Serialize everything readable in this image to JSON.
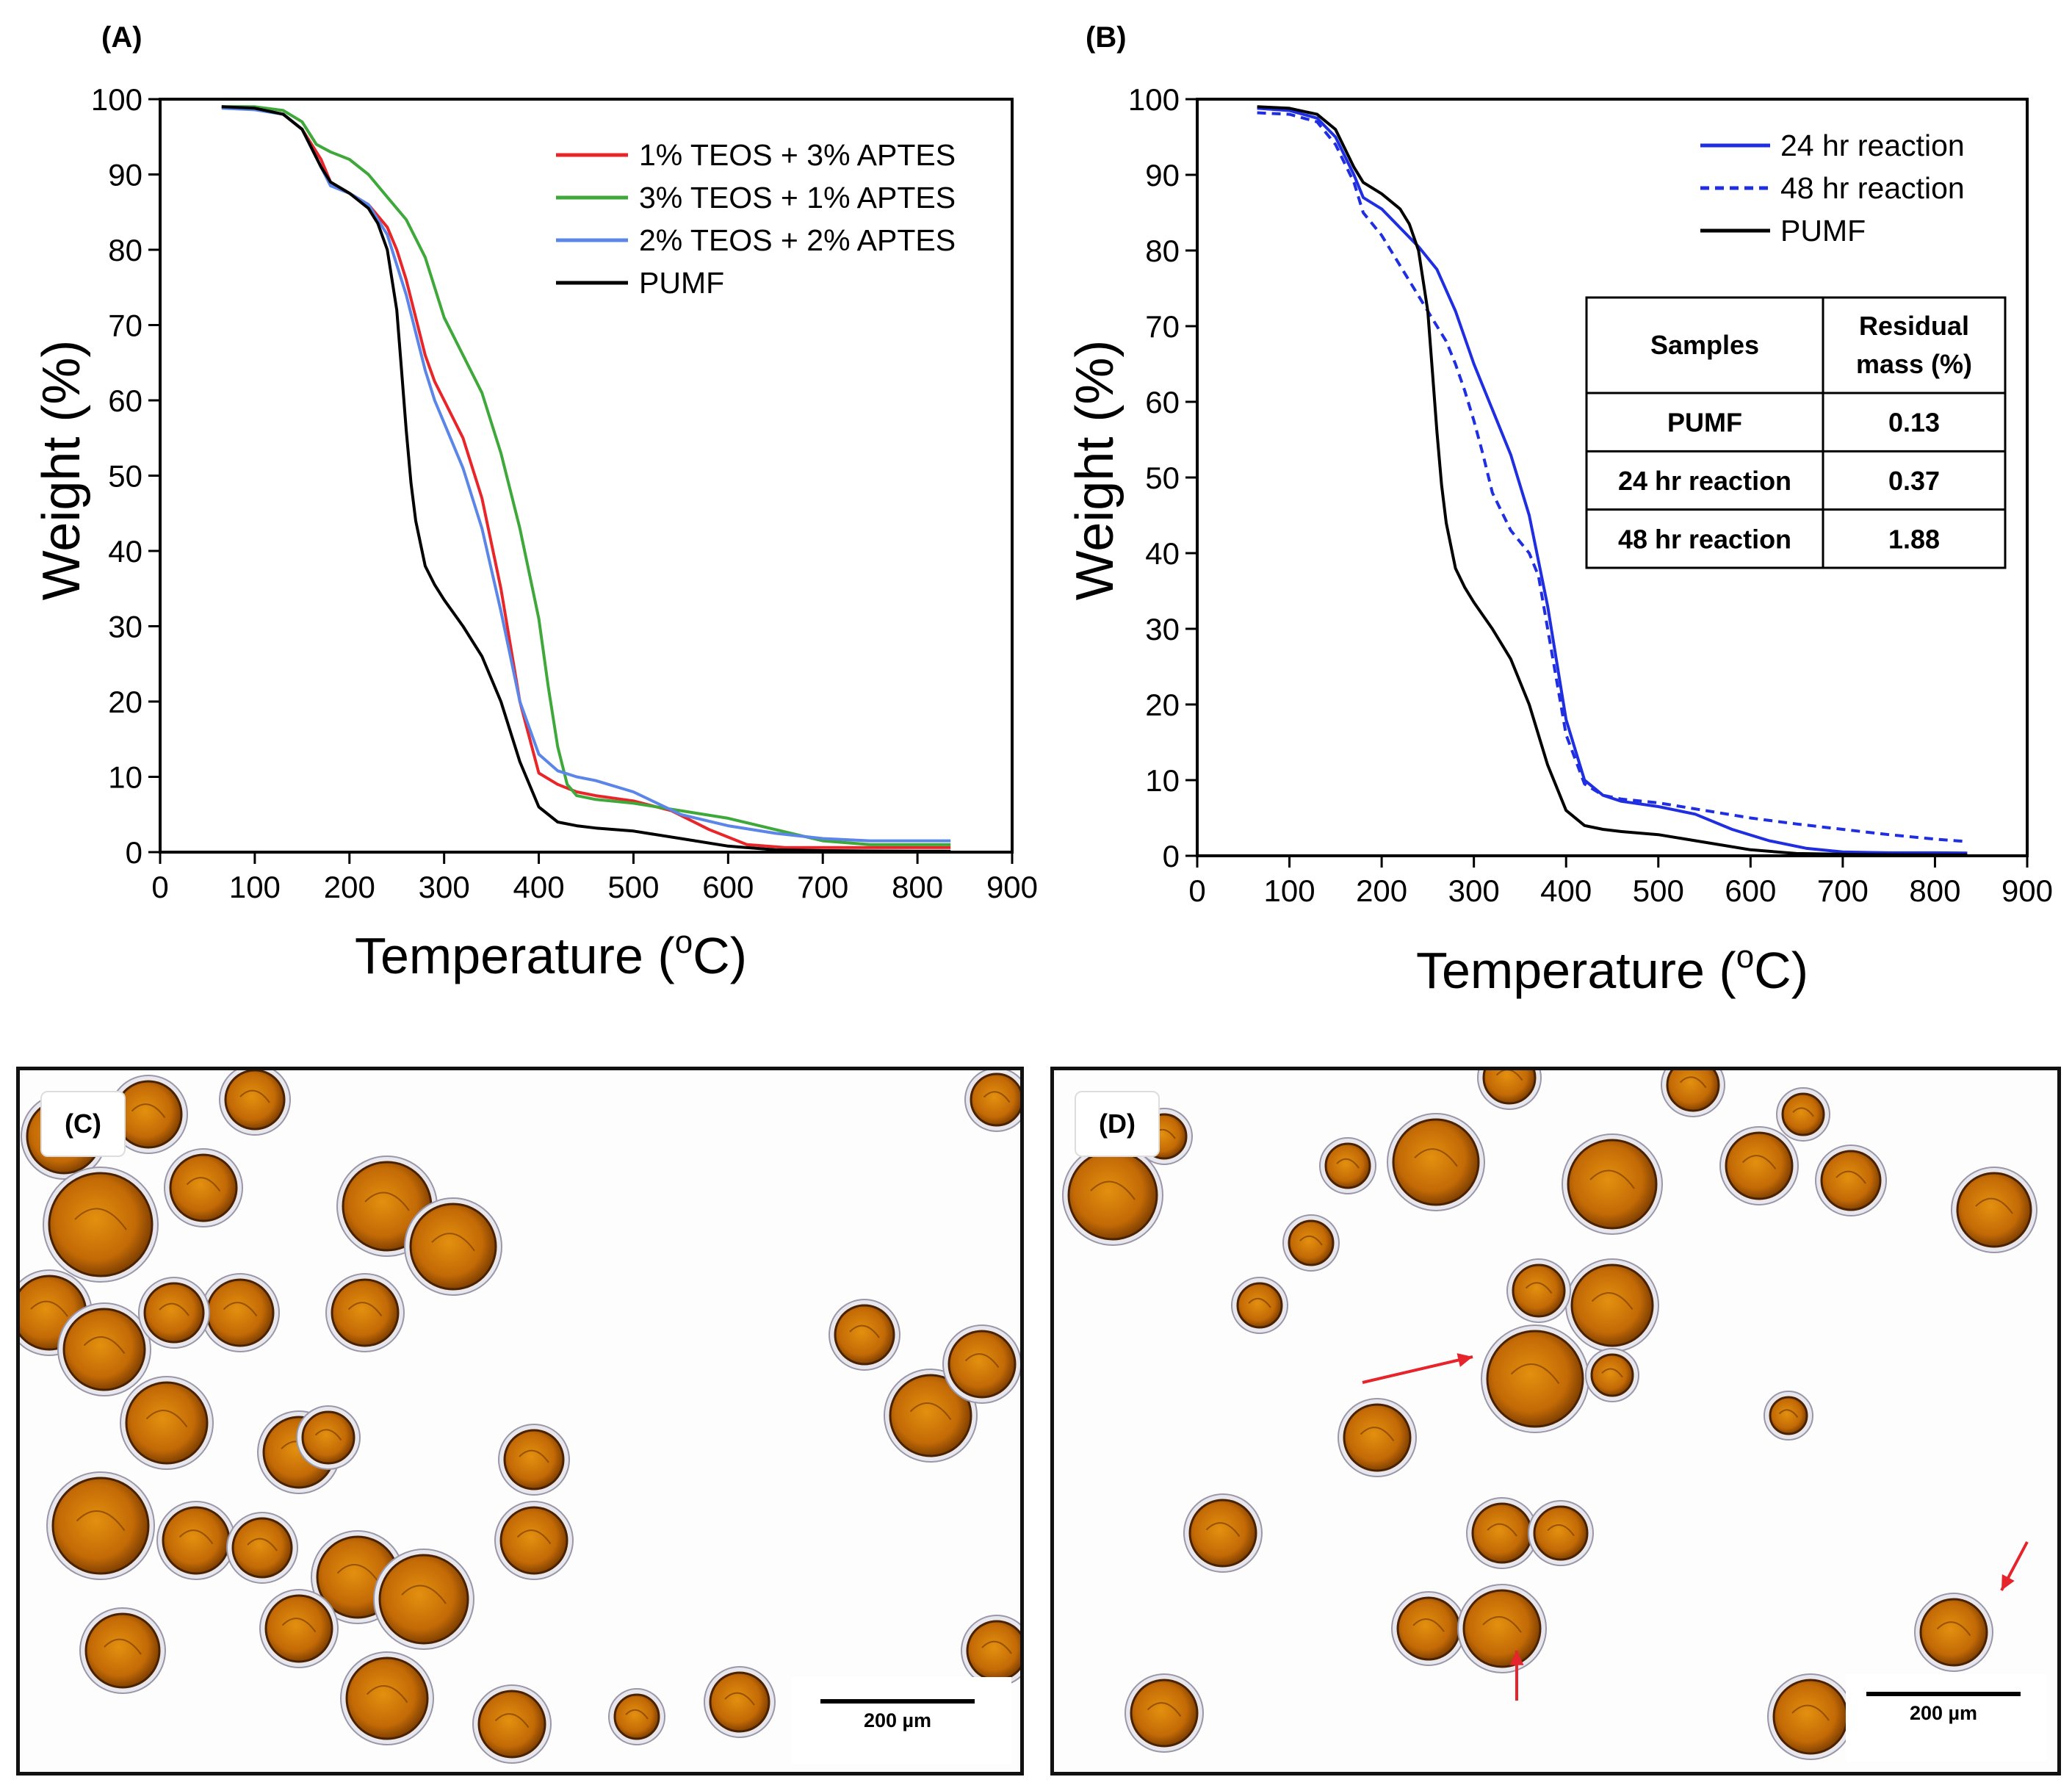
{
  "colors": {
    "red": "#e8262a",
    "green": "#3ea83a",
    "lightblue": "#5b86e8",
    "black": "#000000",
    "blue": "#1f2ee0",
    "arrow": "#e5242b"
  },
  "panels": {
    "A": {
      "label": "(A)"
    },
    "B": {
      "label": "(B)"
    },
    "C": {
      "label": "(C)",
      "scale_label": "200 µm"
    },
    "D": {
      "label": "(D)",
      "scale_label": "200 µm"
    }
  },
  "chart_data": [
    {
      "id": "A",
      "type": "line",
      "xlabel": "Temperature (oC)",
      "xlabel_main": "Temperature (",
      "xlabel_sup": "o",
      "xlabel_end": "C)",
      "ylabel": "Weight (%)",
      "xlim": [
        0,
        900
      ],
      "ylim": [
        0,
        100
      ],
      "xticks": [
        0,
        100,
        200,
        300,
        400,
        500,
        600,
        700,
        800,
        900
      ],
      "yticks": [
        0,
        10,
        20,
        30,
        40,
        50,
        60,
        70,
        80,
        90,
        100
      ],
      "legend_position": "top-right",
      "series": [
        {
          "name": "1% TEOS + 3% APTES",
          "color": "red",
          "dash": false,
          "x": [
            65,
            100,
            130,
            150,
            170,
            180,
            200,
            220,
            240,
            250,
            260,
            270,
            280,
            290,
            300,
            320,
            340,
            360,
            380,
            400,
            420,
            440,
            460,
            500,
            540,
            580,
            620,
            660,
            700,
            750,
            800,
            835
          ],
          "y": [
            99.0,
            98.8,
            98.0,
            96.0,
            92.0,
            89.0,
            87.5,
            86.0,
            83.0,
            80.0,
            76.0,
            71.0,
            66.0,
            62.5,
            60.0,
            55.0,
            47.0,
            35.0,
            20.0,
            10.5,
            9.0,
            8.0,
            7.5,
            6.8,
            5.5,
            3.0,
            1.0,
            0.6,
            0.6,
            0.6,
            0.6,
            0.6
          ]
        },
        {
          "name": "3% TEOS + 1% APTES",
          "color": "green",
          "dash": false,
          "x": [
            65,
            100,
            130,
            150,
            165,
            180,
            200,
            220,
            240,
            260,
            280,
            290,
            300,
            320,
            340,
            360,
            380,
            400,
            410,
            420,
            430,
            440,
            460,
            500,
            550,
            600,
            650,
            700,
            750,
            800,
            835
          ],
          "y": [
            99.0,
            99.0,
            98.5,
            97.0,
            94.0,
            93.0,
            92.0,
            90.0,
            87.0,
            84.0,
            79.0,
            75.0,
            71.0,
            66.0,
            61.0,
            53.0,
            43.0,
            31.0,
            22.0,
            14.0,
            9.0,
            7.5,
            7.0,
            6.5,
            5.5,
            4.5,
            3.0,
            1.5,
            1.0,
            1.0,
            1.0
          ]
        },
        {
          "name": "2% TEOS + 2% APTES",
          "color": "lightblue",
          "dash": false,
          "x": [
            65,
            100,
            130,
            150,
            170,
            180,
            200,
            220,
            240,
            250,
            260,
            270,
            280,
            290,
            300,
            320,
            340,
            360,
            380,
            400,
            420,
            440,
            460,
            500,
            550,
            600,
            650,
            700,
            750,
            800,
            835
          ],
          "y": [
            98.8,
            98.6,
            98.0,
            96.0,
            91.0,
            88.5,
            87.5,
            86.0,
            82.0,
            78.0,
            74.0,
            69.0,
            64.0,
            60.0,
            57.0,
            51.0,
            43.0,
            32.0,
            20.0,
            13.0,
            10.8,
            10.0,
            9.5,
            8.0,
            5.0,
            3.5,
            2.5,
            1.8,
            1.5,
            1.5,
            1.5
          ]
        },
        {
          "name": "PUMF",
          "color": "black",
          "dash": false,
          "x": [
            65,
            100,
            130,
            150,
            170,
            180,
            200,
            220,
            230,
            240,
            250,
            255,
            260,
            265,
            270,
            280,
            290,
            300,
            320,
            340,
            360,
            380,
            400,
            420,
            440,
            460,
            500,
            550,
            600,
            650,
            700,
            750,
            800,
            835
          ],
          "y": [
            99.0,
            98.8,
            98.0,
            96.0,
            91.0,
            89.0,
            87.5,
            85.5,
            83.5,
            80.0,
            72.0,
            64.0,
            56.0,
            49.0,
            44.0,
            38.0,
            35.5,
            33.5,
            30.0,
            26.0,
            20.0,
            12.0,
            6.0,
            4.0,
            3.5,
            3.2,
            2.8,
            1.8,
            0.8,
            0.3,
            0.2,
            0.15,
            0.13,
            0.13
          ]
        }
      ]
    },
    {
      "id": "B",
      "type": "line",
      "xlabel": "Temperature (oC)",
      "xlabel_main": "Temperature (",
      "xlabel_sup": "o",
      "xlabel_end": "C)",
      "ylabel": "Weight (%)",
      "xlim": [
        0,
        900
      ],
      "ylim": [
        0,
        100
      ],
      "xticks": [
        0,
        100,
        200,
        300,
        400,
        500,
        600,
        700,
        800,
        900
      ],
      "yticks": [
        0,
        10,
        20,
        30,
        40,
        50,
        60,
        70,
        80,
        90,
        100
      ],
      "legend_position": "top-right",
      "series": [
        {
          "name": "24 hr reaction",
          "color": "blue",
          "dash": false,
          "x": [
            65,
            100,
            130,
            150,
            170,
            180,
            200,
            220,
            240,
            260,
            280,
            300,
            320,
            340,
            360,
            380,
            400,
            420,
            440,
            460,
            500,
            540,
            580,
            620,
            660,
            700,
            750,
            800,
            835
          ],
          "y": [
            98.8,
            98.5,
            97.5,
            95.0,
            90.0,
            87.0,
            85.5,
            83.0,
            80.5,
            77.5,
            72.0,
            65.0,
            59.0,
            53.0,
            45.0,
            33.0,
            18.0,
            10.0,
            8.0,
            7.2,
            6.5,
            5.5,
            3.5,
            2.0,
            1.0,
            0.5,
            0.4,
            0.4,
            0.37
          ]
        },
        {
          "name": "48 hr reaction",
          "color": "blue",
          "dash": true,
          "x": [
            65,
            100,
            130,
            150,
            170,
            180,
            190,
            200,
            220,
            240,
            260,
            270,
            280,
            290,
            300,
            310,
            320,
            340,
            360,
            370,
            380,
            400,
            420,
            440,
            460,
            500,
            550,
            600,
            650,
            700,
            750,
            800,
            835
          ],
          "y": [
            98.2,
            98.0,
            97.0,
            94.0,
            89.0,
            85.0,
            83.5,
            82.0,
            78.0,
            74.0,
            70.0,
            68.0,
            65.0,
            61.5,
            57.5,
            53.0,
            48.0,
            43.0,
            40.0,
            37.0,
            30.0,
            16.0,
            9.5,
            8.0,
            7.5,
            7.0,
            6.0,
            5.0,
            4.2,
            3.5,
            2.8,
            2.2,
            1.88
          ]
        },
        {
          "name": "PUMF",
          "color": "black",
          "dash": false,
          "x": [
            65,
            100,
            130,
            150,
            170,
            180,
            200,
            220,
            230,
            240,
            250,
            255,
            260,
            265,
            270,
            280,
            290,
            300,
            320,
            340,
            360,
            380,
            400,
            420,
            440,
            460,
            500,
            550,
            600,
            650,
            700,
            750,
            800,
            835
          ],
          "y": [
            99.0,
            98.8,
            98.0,
            96.0,
            91.0,
            89.0,
            87.5,
            85.5,
            83.5,
            80.0,
            72.0,
            64.0,
            56.0,
            49.0,
            44.0,
            38.0,
            35.5,
            33.5,
            30.0,
            26.0,
            20.0,
            12.0,
            6.0,
            4.0,
            3.5,
            3.2,
            2.8,
            1.8,
            0.8,
            0.3,
            0.2,
            0.15,
            0.13,
            0.13
          ]
        }
      ],
      "inset_table": {
        "headers": [
          "Samples",
          "Residual mass (%)"
        ],
        "header_lines": [
          [
            "Samples"
          ],
          [
            "Residual",
            "mass (%)"
          ]
        ],
        "rows": [
          [
            "PUMF",
            "0.13"
          ],
          [
            "24 hr reaction",
            "0.37"
          ],
          [
            "48 hr reaction",
            "1.88"
          ]
        ]
      }
    }
  ]
}
